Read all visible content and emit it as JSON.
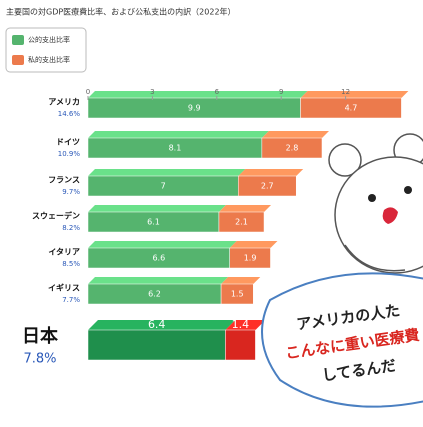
{
  "chart_data": {
    "type": "bar",
    "orientation": "horizontal",
    "stacked": true,
    "title": "主要国の対GDP医療費比率、および公私支出の内訳（2022年）",
    "categories": [
      "アメリカ",
      "ドイツ",
      "フランス",
      "スウェーデン",
      "イタリア",
      "イギリス",
      "日本"
    ],
    "total_labels": [
      "14.6%",
      "10.9%",
      "9.7%",
      "8.2%",
      "8.5%",
      "7.7%",
      "7.8%"
    ],
    "series": [
      {
        "name": "公的支出比率",
        "color": "#55b46e",
        "values": [
          9.9,
          8.1,
          7.0,
          6.1,
          6.6,
          6.2,
          6.4
        ]
      },
      {
        "name": "私的支出比率",
        "color": "#ec7a4c",
        "values": [
          4.7,
          2.8,
          2.7,
          2.1,
          1.9,
          1.5,
          1.4
        ]
      }
    ],
    "highlight_colors": [
      "#1f8f4c",
      "#d9261f"
    ],
    "xlim": [
      0,
      15
    ],
    "xticks": [
      0,
      3,
      6,
      9,
      12
    ],
    "annotations": [
      "アメリカの人た",
      "こんなに重い医療費",
      "してるんだ"
    ],
    "legend": "top-left"
  }
}
